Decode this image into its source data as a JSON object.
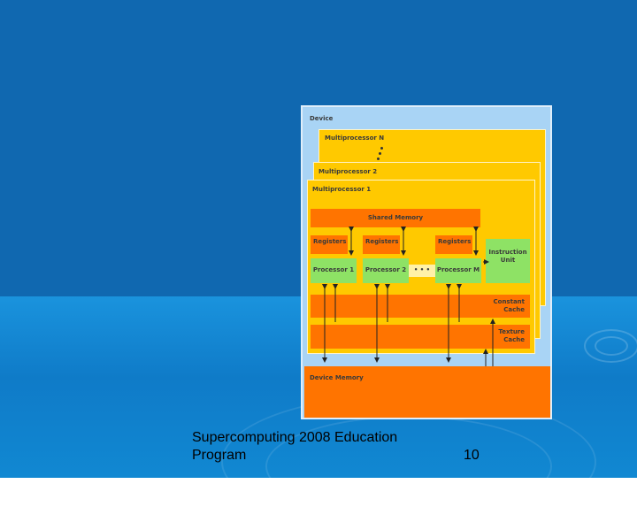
{
  "diagram": {
    "device": "Device",
    "multiprocessor_n": "Multiprocessor N",
    "multiprocessor_2": "Multiprocessor 2",
    "multiprocessor_1": "Multiprocessor 1",
    "shared_memory": "Shared Memory",
    "registers": [
      "Registers",
      "Registers",
      "Registers"
    ],
    "processors": [
      "Processor 1",
      "Processor 2",
      "Processor M"
    ],
    "ellipsis": "• • •",
    "instruction_unit": [
      "Instruction",
      "Unit"
    ],
    "constant_cache": [
      "Constant",
      "Cache"
    ],
    "texture_cache": [
      "Texture",
      "Cache"
    ],
    "device_memory": "Device Memory"
  },
  "footer": {
    "line1": "Supercomputing 2008 Education",
    "line2": "Program",
    "page_number": "10"
  }
}
